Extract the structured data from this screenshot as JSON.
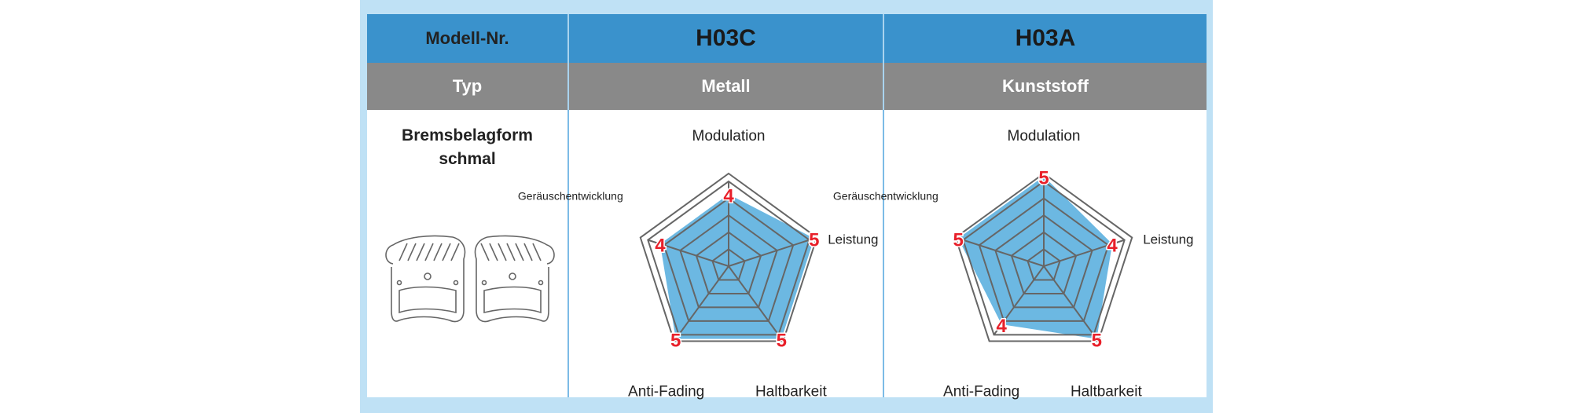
{
  "table": {
    "header_label": "Modell-Nr.",
    "type_label": "Typ",
    "shape_label": "Bremsbelagform",
    "shape_value": "schmal",
    "models": [
      {
        "name": "H03C",
        "type": "Metall"
      },
      {
        "name": "H03A",
        "type": "Kunststoff"
      }
    ]
  },
  "colors": {
    "header": "#3a92cc",
    "type_row": "#898989",
    "frame": "#bfe1f5",
    "fill": "#6cb8e2",
    "value_label": "#e8202a"
  },
  "chart_data": [
    {
      "type": "radar",
      "title": "H03C",
      "axes": [
        "Modulation",
        "Leistung",
        "Haltbarkeit",
        "Anti-Fading",
        "Geräuschentwicklung"
      ],
      "values": [
        4,
        5,
        5,
        5,
        4
      ],
      "rlim": [
        0,
        5
      ]
    },
    {
      "type": "radar",
      "title": "H03A",
      "axes": [
        "Modulation",
        "Leistung",
        "Haltbarkeit",
        "Anti-Fading",
        "Geräuschentwicklung"
      ],
      "values": [
        5,
        4,
        5,
        4,
        5
      ],
      "rlim": [
        0,
        5
      ]
    }
  ]
}
